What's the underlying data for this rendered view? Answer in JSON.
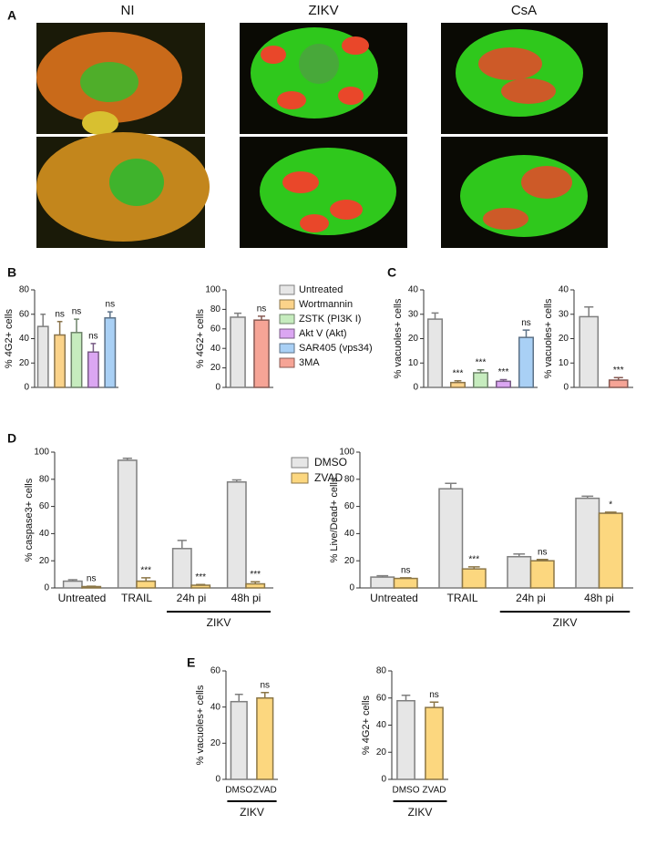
{
  "panels": [
    "A",
    "B",
    "C",
    "D",
    "E"
  ],
  "images": [
    "NI",
    "ZIKV",
    "CsA"
  ],
  "legend": [
    {
      "name": "Untreated",
      "color": "#e6e6e6"
    },
    {
      "name": "Wortmannin",
      "color": "#fbd38a"
    },
    {
      "name": "ZSTK (PI3K I)",
      "color": "#c6ecbe"
    },
    {
      "name": "Akt V (Akt)",
      "color": "#dba6f2"
    },
    {
      "name": "SAR405 (vps34)",
      "color": "#a9d0f5"
    },
    {
      "name": "3MA",
      "color": "#f6a496"
    }
  ],
  "chart_data": [
    {
      "type": "bar",
      "ylabel": "% 4G2+ cells",
      "ylim": [
        0,
        80
      ],
      "yticks": [
        0,
        20,
        40,
        60,
        80
      ],
      "series": [
        {
          "colors": [
            "#e6e6e6",
            "#fbd38a",
            "#c6ecbe",
            "#dba6f2",
            "#a9d0f5"
          ],
          "values": [
            50,
            43,
            45,
            29,
            57
          ],
          "errors": [
            10,
            11,
            11,
            7,
            5
          ],
          "annotations": [
            null,
            "ns",
            "ns",
            "ns",
            "ns"
          ]
        }
      ]
    },
    {
      "type": "bar",
      "ylabel": "% 4G2+ cells",
      "ylim": [
        0,
        100
      ],
      "yticks": [
        0,
        20,
        40,
        60,
        80,
        100
      ],
      "series": [
        {
          "colors": [
            "#e6e6e6",
            "#f6a496"
          ],
          "values": [
            72,
            69
          ],
          "errors": [
            4,
            4
          ],
          "annotations": [
            null,
            "ns"
          ]
        }
      ]
    },
    {
      "type": "bar",
      "ylabel": "% vacuoles+ cells",
      "ylim": [
        0,
        40
      ],
      "yticks": [
        0,
        10,
        20,
        30,
        40
      ],
      "series": [
        {
          "colors": [
            "#e6e6e6",
            "#fbd38a",
            "#c6ecbe",
            "#dba6f2",
            "#a9d0f5"
          ],
          "values": [
            28,
            2,
            6,
            2.5,
            20.5
          ],
          "errors": [
            2.5,
            0.7,
            1.2,
            0.7,
            3
          ],
          "annotations": [
            null,
            "***",
            "***",
            "***",
            "ns"
          ]
        }
      ]
    },
    {
      "type": "bar",
      "ylabel": "% vacuoles+ cells",
      "ylim": [
        0,
        40
      ],
      "yticks": [
        0,
        10,
        20,
        30,
        40
      ],
      "series": [
        {
          "colors": [
            "#e6e6e6",
            "#f6a496"
          ],
          "values": [
            29,
            3
          ],
          "errors": [
            4,
            1
          ],
          "annotations": [
            null,
            "***"
          ]
        }
      ]
    },
    {
      "type": "bar",
      "ylabel": "% caspase3+ cells",
      "ylim": [
        0,
        100
      ],
      "yticks": [
        0,
        20,
        40,
        60,
        80,
        100
      ],
      "categories": [
        "Untreated",
        "TRAIL",
        "24h pi",
        "48h pi"
      ],
      "group_label": "ZIKV",
      "series": [
        {
          "name": "DMSO",
          "color": "#e6e6e6",
          "values": [
            5,
            94,
            29,
            78
          ],
          "errors": [
            1,
            1.5,
            6,
            1.5
          ]
        },
        {
          "name": "ZVAD",
          "color": "#fcd77f",
          "values": [
            1,
            5,
            2,
            3
          ],
          "errors": [
            0.3,
            2.5,
            0.5,
            1.5
          ],
          "annotations": [
            "ns",
            "***",
            "***",
            "***"
          ]
        }
      ]
    },
    {
      "type": "bar",
      "ylabel": "% Live/Dead+ cells",
      "ylim": [
        0,
        100
      ],
      "yticks": [
        0,
        20,
        40,
        60,
        80,
        100
      ],
      "categories": [
        "Untreated",
        "TRAIL",
        "24h pi",
        "48h pi"
      ],
      "group_label": "ZIKV",
      "series": [
        {
          "color": "#e6e6e6",
          "values": [
            8,
            73,
            23,
            66
          ],
          "errors": [
            1,
            4,
            2,
            1.5
          ]
        },
        {
          "color": "#fcd77f",
          "values": [
            7,
            14,
            20,
            55
          ],
          "errors": [
            0.5,
            1.5,
            1,
            0.8
          ],
          "annotations": [
            "ns",
            "***",
            "ns",
            "*"
          ]
        }
      ]
    },
    {
      "type": "bar",
      "ylabel": "% vacuoles+ cells",
      "ylim": [
        0,
        60
      ],
      "yticks": [
        0,
        20,
        40,
        60
      ],
      "categories": [
        "DMSO",
        "ZVAD"
      ],
      "group_label": "ZIKV",
      "series": [
        {
          "colors": [
            "#e6e6e6",
            "#fcd77f"
          ],
          "values": [
            43,
            45
          ],
          "errors": [
            4,
            3
          ],
          "annotations": [
            null,
            "ns"
          ]
        }
      ]
    },
    {
      "type": "bar",
      "ylabel": "% 4G2+ cells",
      "ylim": [
        0,
        80
      ],
      "yticks": [
        0,
        20,
        40,
        60,
        80
      ],
      "categories": [
        "DMSO",
        "ZVAD"
      ],
      "group_label": "ZIKV",
      "series": [
        {
          "colors": [
            "#e6e6e6",
            "#fcd77f"
          ],
          "values": [
            58,
            53
          ],
          "errors": [
            4,
            4
          ],
          "annotations": [
            null,
            "ns"
          ]
        }
      ]
    }
  ]
}
